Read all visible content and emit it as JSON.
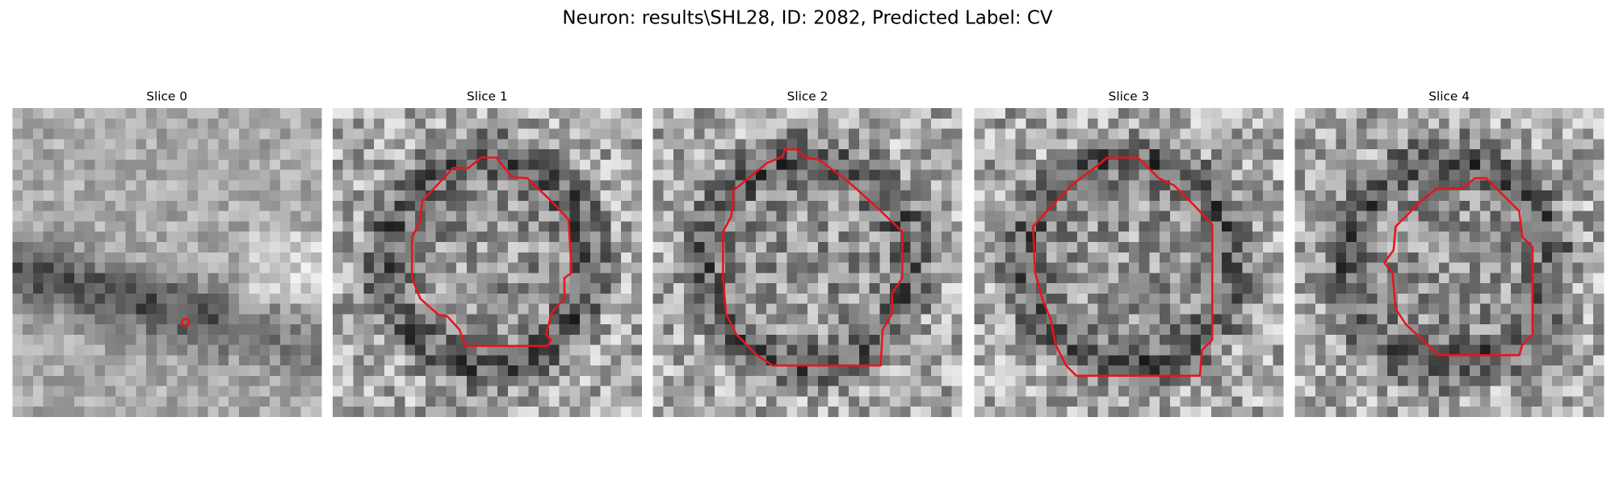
{
  "header": {
    "title": "Neuron: results\\SHL28, ID: 2082, Predicted Label: CV"
  },
  "panels": [
    {
      "title": "Slice 0"
    },
    {
      "title": "Slice 1"
    },
    {
      "title": "Slice 2"
    },
    {
      "title": "Slice 3"
    },
    {
      "title": "Slice 4"
    }
  ]
}
